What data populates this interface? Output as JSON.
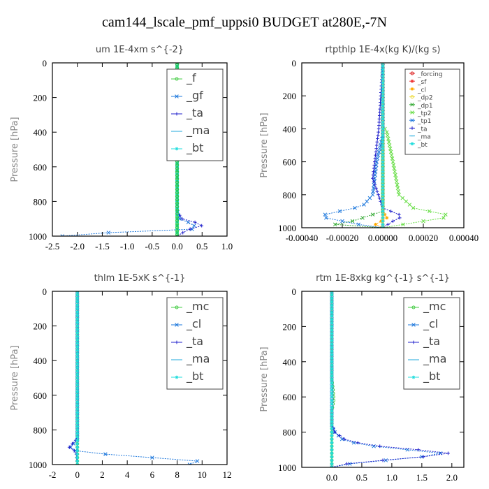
{
  "figure_title": "cam144_lscale_pmf_uppsi0  BUDGET at280E,-7N",
  "chart_data": [
    {
      "type": "line",
      "title": "um   1E-4xm s^{-2}",
      "ylabel": "Pressure [hPa]",
      "xlim": [
        -2.5,
        1.0
      ],
      "ylim": [
        1000,
        0
      ],
      "xticks": [
        -2.5,
        -2.0,
        -1.5,
        -1.0,
        -0.5,
        0.0,
        0.5,
        1.0
      ],
      "xticklabels": [
        "-2.5",
        "-2.0",
        "-1.5",
        "-1.0",
        "-0.5",
        "0.0",
        "0.5",
        "1.0"
      ],
      "yticks": [
        0,
        200,
        400,
        600,
        800,
        1000
      ],
      "yticklabels": [
        "0",
        "200",
        "400",
        "600",
        "800",
        "1000"
      ],
      "legend_position": "top-right",
      "legend_size": "large",
      "series": [
        {
          "name": "_f",
          "color": "#44cc44",
          "marker": "o",
          "points": [
            [
              0,
              0
            ],
            [
              0,
              200
            ],
            [
              0,
              400
            ],
            [
              0,
              600
            ],
            [
              0,
              800
            ],
            [
              0,
              1000
            ]
          ]
        },
        {
          "name": "_gf",
          "color": "#1e78dc",
          "marker": "x",
          "points": [
            [
              0,
              0
            ],
            [
              0,
              850
            ],
            [
              0.05,
              900
            ],
            [
              0.35,
              935
            ],
            [
              0.3,
              960
            ],
            [
              -0.5,
              965
            ],
            [
              -2.25,
              995
            ],
            [
              -2.3,
              1000
            ]
          ]
        },
        {
          "name": "_ta",
          "color": "#2222cc",
          "marker": "+",
          "points": [
            [
              0,
              0
            ],
            [
              0,
              860
            ],
            [
              0.1,
              900
            ],
            [
              0.55,
              935
            ],
            [
              0.2,
              965
            ],
            [
              0,
              1000
            ]
          ]
        },
        {
          "name": "_ma",
          "color": "#22aadd",
          "marker": "-",
          "points": [
            [
              0,
              0
            ],
            [
              0,
              1000
            ]
          ]
        },
        {
          "name": "_bt",
          "color": "#22dddd",
          "marker": "*",
          "points": [
            [
              0,
              0
            ],
            [
              0,
              1000
            ]
          ]
        },
        {
          "color": "#22cc44",
          "marker": "x",
          "points": [
            [
              0,
              0
            ],
            [
              0,
              1000
            ]
          ]
        }
      ]
    },
    {
      "type": "line",
      "title": "rtpthlp   1E-4x(kg K)/(kg s)",
      "ylabel": "Pressure [hPa]",
      "xlim": [
        -0.0004,
        0.0004
      ],
      "ylim": [
        1000,
        0
      ],
      "xticks": [
        -0.0004,
        -0.0002,
        0.0,
        0.0002,
        0.0004
      ],
      "xticklabels": [
        "-0.00040",
        "-0.00020",
        "0.00000",
        "0.00020",
        "0.00040"
      ],
      "yticks": [
        0,
        200,
        400,
        600,
        800,
        1000
      ],
      "yticklabels": [
        "0",
        "200",
        "400",
        "600",
        "800",
        "1000"
      ],
      "legend_position": "top-right",
      "legend_size": "small",
      "series": [
        {
          "name": "_forcing",
          "color": "#dd2222",
          "marker": "o",
          "points": [
            [
              0,
              0
            ],
            [
              0,
              1000
            ]
          ]
        },
        {
          "name": "_sf",
          "color": "#ee3333",
          "marker": "*",
          "points": [
            [
              0,
              0
            ],
            [
              0,
              1000
            ]
          ]
        },
        {
          "name": "_cl",
          "color": "#ffaa00",
          "marker": "*",
          "points": [
            [
              0,
              0
            ],
            [
              0,
              900
            ],
            [
              2e-05,
              940
            ],
            [
              -5e-05,
              990
            ],
            [
              0,
              1000
            ]
          ]
        },
        {
          "name": "_dp2",
          "color": "#eedd44",
          "marker": "o",
          "points": [
            [
              0,
              0
            ],
            [
              0,
              1000
            ]
          ]
        },
        {
          "name": "_dp1",
          "color": "#33aa33",
          "marker": "x",
          "points": [
            [
              0,
              0
            ],
            [
              0,
              900
            ],
            [
              -0.00015,
              960
            ],
            [
              -0.0003,
              995
            ],
            [
              0,
              1000
            ]
          ]
        },
        {
          "name": "_tp2",
          "color": "#66dd44",
          "marker": "x",
          "points": [
            [
              0,
              0
            ],
            [
              0,
              380
            ],
            [
              2e-05,
              420
            ],
            [
              5e-05,
              600
            ],
            [
              8e-05,
              800
            ],
            [
              0.00015,
              880
            ],
            [
              0.00035,
              930
            ],
            [
              0.0002,
              960
            ],
            [
              5e-05,
              990
            ],
            [
              0,
              1000
            ]
          ]
        },
        {
          "name": "_tp1",
          "color": "#1e78dc",
          "marker": "x",
          "points": [
            [
              0,
              0
            ],
            [
              0,
              440
            ],
            [
              -3e-05,
              600
            ],
            [
              -5e-05,
              800
            ],
            [
              -0.0001,
              870
            ],
            [
              -0.00025,
              910
            ],
            [
              -0.00032,
              930
            ],
            [
              -0.0002,
              960
            ],
            [
              -8e-05,
              990
            ],
            [
              0,
              1000
            ]
          ]
        },
        {
          "name": "_ta",
          "color": "#2222cc",
          "marker": "+",
          "points": [
            [
              0,
              0
            ],
            [
              -2e-05,
              400
            ],
            [
              -5e-05,
              700
            ],
            [
              0,
              880
            ],
            [
              0.0001,
              930
            ],
            [
              5e-05,
              960
            ],
            [
              0,
              1000
            ]
          ]
        },
        {
          "name": "_ma",
          "color": "#22aadd",
          "marker": "-",
          "points": [
            [
              0,
              0
            ],
            [
              0,
              1000
            ]
          ]
        },
        {
          "name": "_bt",
          "color": "#22dddd",
          "marker": "*",
          "points": [
            [
              0,
              0
            ],
            [
              0,
              1000
            ]
          ]
        }
      ]
    },
    {
      "type": "line",
      "title": "thlm   1E-5xK s^{-1}",
      "ylabel": "Pressure [hPa]",
      "xlim": [
        -2,
        12
      ],
      "ylim": [
        1000,
        0
      ],
      "xticks": [
        -2,
        0,
        2,
        4,
        6,
        8,
        10,
        12
      ],
      "xticklabels": [
        "-2",
        "0",
        "2",
        "4",
        "6",
        "8",
        "10",
        "12"
      ],
      "yticks": [
        0,
        200,
        400,
        600,
        800,
        1000
      ],
      "yticklabels": [
        "0",
        "200",
        "400",
        "600",
        "800",
        "1000"
      ],
      "legend_position": "top-right",
      "legend_size": "large",
      "series": [
        {
          "name": "_mc",
          "color": "#44cc44",
          "marker": "o",
          "points": [
            [
              0,
              0
            ],
            [
              0,
              1000
            ]
          ]
        },
        {
          "name": "_cl",
          "color": "#1e78dc",
          "marker": "x",
          "points": [
            [
              0,
              0
            ],
            [
              0,
              860
            ],
            [
              -0.3,
              880
            ],
            [
              -0.6,
              905
            ],
            [
              0,
              925
            ],
            [
              3,
              945
            ],
            [
              7,
              965
            ],
            [
              10.5,
              985
            ],
            [
              10.2,
              995
            ],
            [
              9,
              1000
            ]
          ]
        },
        {
          "name": "_ta",
          "color": "#2222cc",
          "marker": "+",
          "points": [
            [
              0,
              0
            ],
            [
              0,
              850
            ],
            [
              -0.4,
              880
            ],
            [
              -0.7,
              905
            ],
            [
              -0.1,
              925
            ],
            [
              0,
              1000
            ]
          ]
        },
        {
          "name": "_ma",
          "color": "#22aadd",
          "marker": "-",
          "points": [
            [
              0,
              0
            ],
            [
              0,
              1000
            ]
          ]
        },
        {
          "name": "_bt",
          "color": "#22dddd",
          "marker": "*",
          "points": [
            [
              0,
              0
            ],
            [
              0,
              1000
            ]
          ]
        }
      ]
    },
    {
      "type": "line",
      "title": "rtm   1E-8xkg kg^{-1} s^{-1}",
      "ylabel": "Pressure [hPa]",
      "xlim": [
        -0.5,
        2.2
      ],
      "ylim": [
        1000,
        0
      ],
      "xticks": [
        0.0,
        0.5,
        1.0,
        1.5,
        2.0
      ],
      "xticklabels": [
        "0.0",
        "0.5",
        "1.0",
        "1.5",
        "2.0"
      ],
      "yticks": [
        0,
        200,
        400,
        600,
        800,
        1000
      ],
      "yticklabels": [
        "0",
        "200",
        "400",
        "600",
        "800",
        "1000"
      ],
      "legend_position": "top-right",
      "legend_size": "large",
      "series": [
        {
          "name": "_mc",
          "color": "#44cc44",
          "marker": "o",
          "points": [
            [
              0,
              0
            ],
            [
              0,
              500
            ],
            [
              0.02,
              560
            ],
            [
              0.03,
              620
            ],
            [
              0,
              680
            ],
            [
              0,
              1000
            ]
          ]
        },
        {
          "name": "_cl",
          "color": "#1e78dc",
          "marker": "x",
          "points": [
            [
              0,
              0
            ],
            [
              0,
              760
            ],
            [
              0.05,
              800
            ],
            [
              0.2,
              850
            ],
            [
              0.7,
              880
            ],
            [
              1.4,
              905
            ],
            [
              1.95,
              925
            ],
            [
              1.2,
              950
            ],
            [
              0.3,
              980
            ],
            [
              0,
              1000
            ]
          ]
        },
        {
          "name": "_ta",
          "color": "#2222cc",
          "marker": "+",
          "points": [
            [
              0,
              0
            ],
            [
              0,
              760
            ],
            [
              0.05,
              800
            ],
            [
              0.25,
              850
            ],
            [
              0.8,
              880
            ],
            [
              1.6,
              905
            ],
            [
              2.05,
              925
            ],
            [
              1.0,
              955
            ],
            [
              0.1,
              985
            ],
            [
              0,
              1000
            ]
          ]
        },
        {
          "name": "_ma",
          "color": "#22aadd",
          "marker": "-",
          "points": [
            [
              0,
              0
            ],
            [
              0,
              1000
            ]
          ]
        },
        {
          "name": "_bt",
          "color": "#22dddd",
          "marker": "*",
          "points": [
            [
              0,
              0
            ],
            [
              0,
              1000
            ]
          ]
        }
      ]
    }
  ]
}
